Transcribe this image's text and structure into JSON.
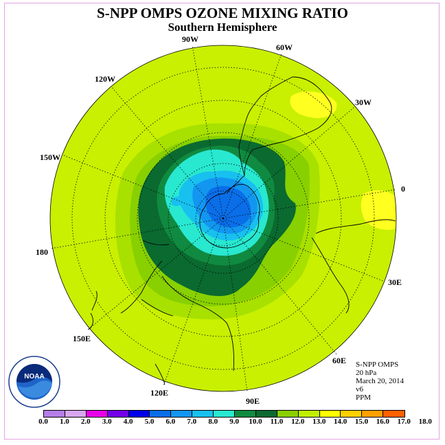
{
  "title": "S-NPP OMPS OZONE MIXING RATIO",
  "subtitle": "Southern Hemisphere",
  "longitude_labels": [
    "90W",
    "60W",
    "30W",
    "0",
    "30E",
    "60E",
    "90E",
    "120E",
    "150E",
    "180",
    "150W",
    "120W"
  ],
  "info": {
    "instrument": "S-NPP OMPS",
    "level": "20 hPa",
    "date": "March 20, 2014",
    "version": "v6",
    "units": "PPM"
  },
  "logo_text": "NOAA",
  "colorbar": {
    "ticks": [
      "0.0",
      "1.0",
      "2.0",
      "3.0",
      "4.0",
      "5.0",
      "6.0",
      "7.0",
      "8.0",
      "9.0",
      "10.0",
      "11.0",
      "12.0",
      "13.0",
      "14.0",
      "15.0",
      "16.0",
      "17.0",
      "18.0"
    ],
    "colors": [
      "#b57ee8",
      "#d9a6ef",
      "#e800e8",
      "#7300e8",
      "#0000e8",
      "#0a6ee8",
      "#1296f0",
      "#18c0f0",
      "#28e8d0",
      "#108a40",
      "#0a6a30",
      "#8ad000",
      "#c0f000",
      "#ffff00",
      "#ffd000",
      "#ffa000",
      "#ff6000",
      "#ff0000",
      "#a05020"
    ]
  },
  "map_colors": {
    "background": "#c8f000",
    "level_11": "#a8e000",
    "level_10": "#88d000",
    "level_9": "#0a6a30",
    "level_8": "#108a40",
    "level_7": "#28e8d0",
    "level_6": "#18c0f0",
    "level_5": "#1296f0",
    "level_4": "#0a6ee8",
    "high": "#ffff20"
  }
}
